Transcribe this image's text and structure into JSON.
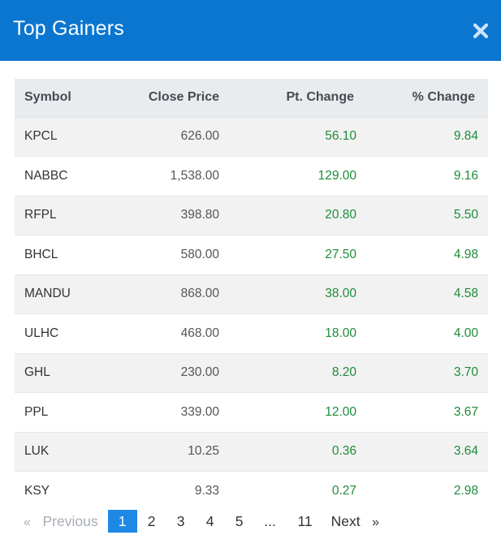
{
  "dialog": {
    "title": "Top Gainers",
    "close_icon": "close-icon",
    "header_color": "#0a76d0"
  },
  "table": {
    "headers": [
      "Symbol",
      "Close Price",
      "Pt. Change",
      "% Change"
    ],
    "rows": [
      {
        "symbol": "KPCL",
        "close": "626.00",
        "pt": "56.10",
        "pct": "9.84"
      },
      {
        "symbol": "NABBC",
        "close": "1,538.00",
        "pt": "129.00",
        "pct": "9.16"
      },
      {
        "symbol": "RFPL",
        "close": "398.80",
        "pt": "20.80",
        "pct": "5.50"
      },
      {
        "symbol": "BHCL",
        "close": "580.00",
        "pt": "27.50",
        "pct": "4.98"
      },
      {
        "symbol": "MANDU",
        "close": "868.00",
        "pt": "38.00",
        "pct": "4.58"
      },
      {
        "symbol": "ULHC",
        "close": "468.00",
        "pt": "18.00",
        "pct": "4.00"
      },
      {
        "symbol": "GHL",
        "close": "230.00",
        "pt": "8.20",
        "pct": "3.70"
      },
      {
        "symbol": "PPL",
        "close": "339.00",
        "pt": "12.00",
        "pct": "3.67"
      },
      {
        "symbol": "LUK",
        "close": "10.25",
        "pt": "0.36",
        "pct": "3.64"
      },
      {
        "symbol": "KSY",
        "close": "9.33",
        "pt": "0.27",
        "pct": "2.98"
      }
    ],
    "gain_color": "#1e8c3a"
  },
  "pagination": {
    "prev_arrow": "«",
    "prev_label": "Previous",
    "pages": [
      "1",
      "2",
      "3",
      "4",
      "5"
    ],
    "ellipsis": "...",
    "last_page": "11",
    "next_label": "Next",
    "next_arrow": "»",
    "current_page": "1",
    "active_color": "#1e88e5"
  }
}
